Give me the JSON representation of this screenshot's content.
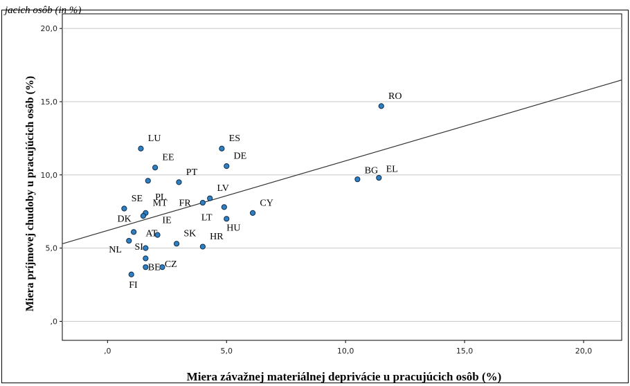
{
  "caption": "jacich osôb (in %)",
  "chart_data": {
    "type": "scatter",
    "xlabel": "Miera závažnej materiálnej deprivácie u pracujúcich osôb (%)",
    "ylabel": "Miera príjmovej chudoby u pracujúcich osôb (%)",
    "xlim": [
      -1.9,
      21.6
    ],
    "ylim": [
      -1.3,
      21.0
    ],
    "x_ticks": [
      0,
      5,
      10,
      15,
      20
    ],
    "x_tick_labels": [
      ",0",
      "5,0",
      "10,0",
      "15,0",
      "20,0"
    ],
    "y_ticks": [
      0,
      5,
      10,
      15,
      20
    ],
    "y_tick_labels": [
      ",0",
      "5,0",
      "10,0",
      "15,0",
      "20,0"
    ],
    "grid": "horizontal",
    "point_color": "#2f7fc1",
    "fit_line": {
      "intercept": 6.2,
      "slope": 0.476,
      "color": "#333333"
    },
    "points": [
      {
        "label": "RO",
        "x": 11.5,
        "y": 14.7,
        "lx": 0.3,
        "ly": 0.5,
        "anchor": "start"
      },
      {
        "label": "BG",
        "x": 10.5,
        "y": 9.7,
        "lx": 0.3,
        "ly": 0.4,
        "anchor": "start"
      },
      {
        "label": "EL",
        "x": 11.4,
        "y": 9.8,
        "lx": 0.3,
        "ly": 0.4,
        "anchor": "start"
      },
      {
        "label": "LU",
        "x": 1.4,
        "y": 11.8,
        "lx": 0.3,
        "ly": 0.5,
        "anchor": "start"
      },
      {
        "label": "ES",
        "x": 4.8,
        "y": 11.8,
        "lx": 0.3,
        "ly": 0.5,
        "anchor": "start"
      },
      {
        "label": "EE",
        "x": 2.0,
        "y": 10.5,
        "lx": 0.3,
        "ly": 0.5,
        "anchor": "start"
      },
      {
        "label": "DE",
        "x": 5.0,
        "y": 10.6,
        "lx": 0.3,
        "ly": 0.5,
        "anchor": "start"
      },
      {
        "label": "PT",
        "x": 3.0,
        "y": 9.5,
        "lx": 0.3,
        "ly": 0.5,
        "anchor": "start"
      },
      {
        "label": "PL",
        "x": 1.7,
        "y": 9.6,
        "lx": 0.3,
        "ly": -1.3,
        "anchor": "start"
      },
      {
        "label": "LV",
        "x": 4.3,
        "y": 8.4,
        "lx": 0.3,
        "ly": 0.5,
        "anchor": "start"
      },
      {
        "label": "FR",
        "x": 4.0,
        "y": 8.1,
        "lx": -0.5,
        "ly": -0.2,
        "anchor": "end"
      },
      {
        "label": "SE",
        "x": 0.7,
        "y": 7.7,
        "lx": 0.3,
        "ly": 0.5,
        "anchor": "start"
      },
      {
        "label": "MT",
        "x": 1.6,
        "y": 7.4,
        "lx": 0.3,
        "ly": 0.5,
        "anchor": "start"
      },
      {
        "label": "LT",
        "x": 4.9,
        "y": 7.8,
        "lx": -0.5,
        "ly": -0.9,
        "anchor": "end"
      },
      {
        "label": "CY",
        "x": 6.1,
        "y": 7.4,
        "lx": 0.3,
        "ly": 0.5,
        "anchor": "start"
      },
      {
        "label": "HU",
        "x": 5.0,
        "y": 7.0,
        "lx": 0.0,
        "ly": -0.8,
        "anchor": "start"
      },
      {
        "label": "DK",
        "x": 1.1,
        "y": 6.1,
        "lx": -0.1,
        "ly": 0.7,
        "anchor": "end"
      },
      {
        "label": "AT",
        "x": 1.5,
        "y": 7.2,
        "lx": 0.1,
        "ly": -1.4,
        "anchor": "start"
      },
      {
        "label": "IE",
        "x": 2.1,
        "y": 5.9,
        "lx": 0.2,
        "ly": 0.8,
        "anchor": "start"
      },
      {
        "label": "SK",
        "x": 2.9,
        "y": 5.3,
        "lx": 0.3,
        "ly": 0.5,
        "anchor": "start"
      },
      {
        "label": "HR",
        "x": 4.0,
        "y": 5.1,
        "lx": 0.3,
        "ly": 0.5,
        "anchor": "start"
      },
      {
        "label": "NL",
        "x": 0.9,
        "y": 5.5,
        "lx": -0.3,
        "ly": -0.8,
        "anchor": "end"
      },
      {
        "label": "SI",
        "x": 1.6,
        "y": 5.0,
        "lx": -0.1,
        "ly": -0.1,
        "anchor": "end"
      },
      {
        "label": "",
        "x": 1.6,
        "y": 4.3,
        "lx": 0,
        "ly": 0,
        "anchor": "start"
      },
      {
        "label": "BE",
        "x": 1.6,
        "y": 3.7,
        "lx": 0.1,
        "ly": -0.2,
        "anchor": "start"
      },
      {
        "label": "CZ",
        "x": 2.3,
        "y": 3.7,
        "lx": 0.1,
        "ly": 0.0,
        "anchor": "start"
      },
      {
        "label": "FI",
        "x": 1.0,
        "y": 3.2,
        "lx": -0.1,
        "ly": -0.9,
        "anchor": "start"
      }
    ]
  }
}
